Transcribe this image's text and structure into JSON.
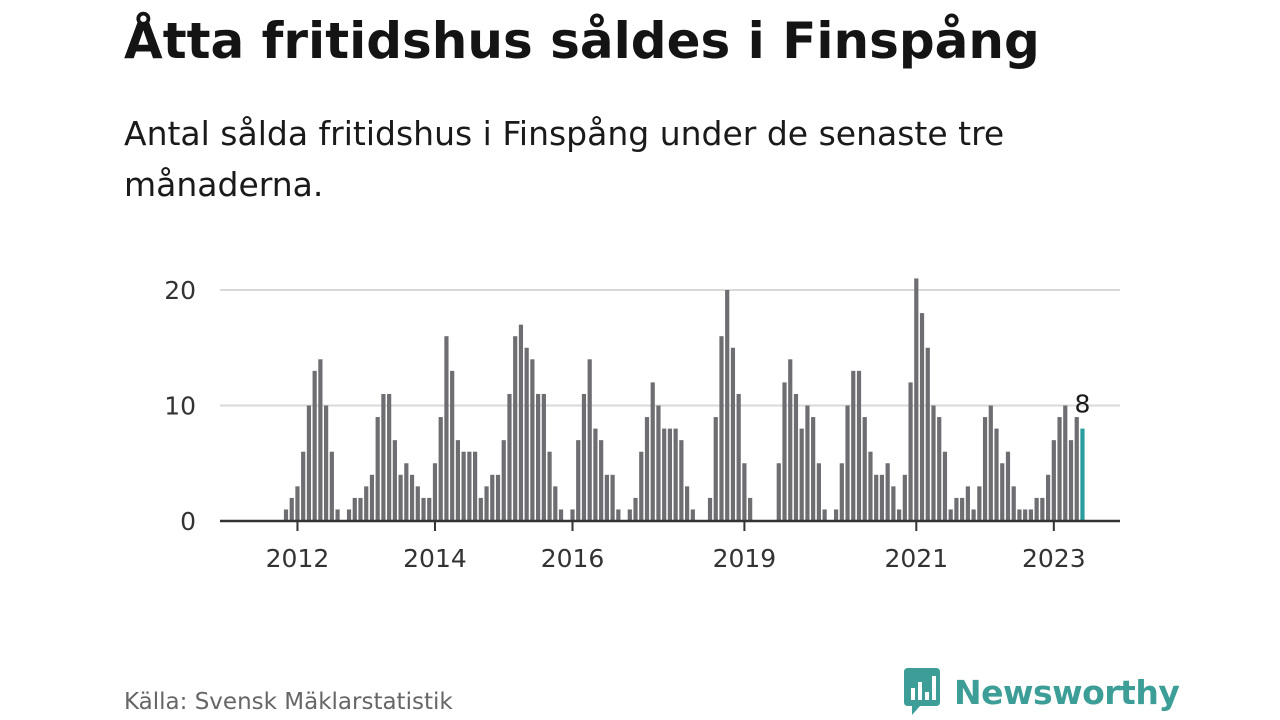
{
  "title": "Åtta fritidshus såldes i Finspång",
  "subtitle": "Antal sålda fritidshus i Finspång under de senaste tre månaderna.",
  "source": "Källa: Svensk Mäklarstatistik",
  "brand": {
    "name": "Newsworthy",
    "logo_icon": "bar-chart-speech-bubble-icon",
    "color": "#3c9e97"
  },
  "colors": {
    "bar": "#6e6d72",
    "highlight": "#2a9e9e",
    "grid": "#d9d9d9",
    "axis": "#333333"
  },
  "chart_data": {
    "type": "bar",
    "x_unit": "month",
    "x_start": "2011-01",
    "x_end": "2023-09",
    "xtick_labels": [
      "2012",
      "2014",
      "2016",
      "2019",
      "2021",
      "2023"
    ],
    "xticks": [
      "2012-01",
      "2014-01",
      "2016-01",
      "2018-07",
      "2021-01",
      "2023-01"
    ],
    "yticks": [
      0,
      10,
      20
    ],
    "ylim": [
      0,
      21
    ],
    "grid": true,
    "highlight_index": -1,
    "annotation": {
      "label": "8",
      "index": -1
    },
    "values": [
      0,
      0,
      0,
      0,
      0,
      0,
      0,
      0,
      0,
      0,
      1,
      2,
      3,
      6,
      10,
      13,
      14,
      10,
      6,
      1,
      0,
      1,
      2,
      2,
      3,
      4,
      9,
      11,
      11,
      7,
      4,
      5,
      4,
      3,
      2,
      2,
      5,
      9,
      16,
      13,
      7,
      6,
      6,
      6,
      2,
      3,
      4,
      4,
      7,
      11,
      16,
      17,
      15,
      14,
      11,
      11,
      6,
      3,
      1,
      0,
      1,
      7,
      11,
      14,
      8,
      7,
      4,
      4,
      1,
      0,
      1,
      2,
      6,
      9,
      12,
      10,
      8,
      8,
      8,
      7,
      3,
      1,
      0,
      0,
      2,
      9,
      16,
      20,
      15,
      11,
      5,
      2,
      0,
      0,
      0,
      0,
      5,
      12,
      14,
      11,
      8,
      10,
      9,
      5,
      1,
      0,
      1,
      5,
      10,
      13,
      13,
      9,
      6,
      4,
      4,
      5,
      3,
      1,
      4,
      12,
      21,
      18,
      15,
      10,
      9,
      6,
      1,
      2,
      2,
      3,
      1,
      3,
      9,
      10,
      8,
      5,
      6,
      3,
      1,
      1,
      1,
      2,
      2,
      4,
      7,
      9,
      10,
      7,
      9,
      8
    ]
  }
}
